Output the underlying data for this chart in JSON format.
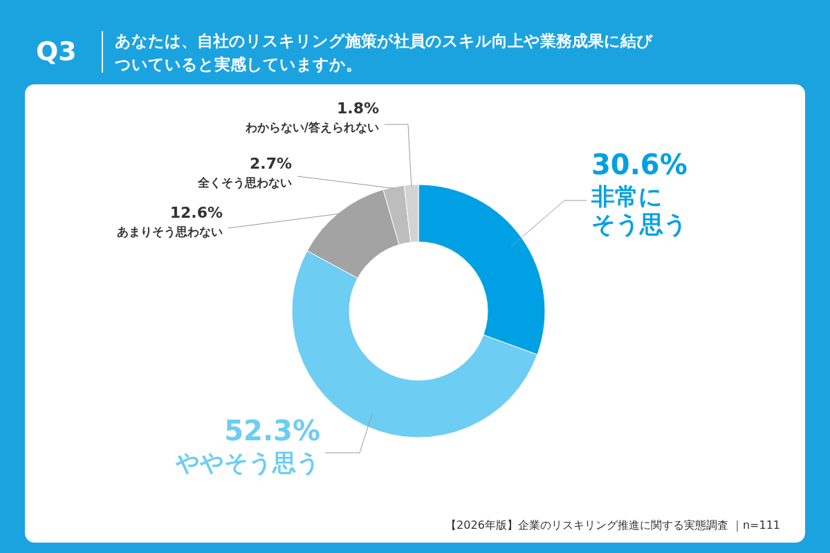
{
  "chart_data": {
    "type": "donut",
    "title": "Q3",
    "subtitle": "あなたは、自社のリスキリング施策が社員のスキル向上や業務成果に結びついていると実感していますか。",
    "categories": [
      "非常にそう思う",
      "ややそう思う",
      "あまりそう思わない",
      "全くそう思わない",
      "わからない/答えられない"
    ],
    "values": [
      30.6,
      52.3,
      12.6,
      2.7,
      1.8
    ],
    "colors": [
      "#00a0e4",
      "#6dcdf3",
      "#a3a3a3",
      "#bdbdbd",
      "#d3d3d3"
    ],
    "value_labels": [
      "30.6%",
      "52.3%",
      "12.6%",
      "2.7%",
      "1.8%"
    ],
    "annotations": [
      "【2026年版】企業のリスキリング推進に関する実態調査 ｜n=111"
    ]
  }
}
